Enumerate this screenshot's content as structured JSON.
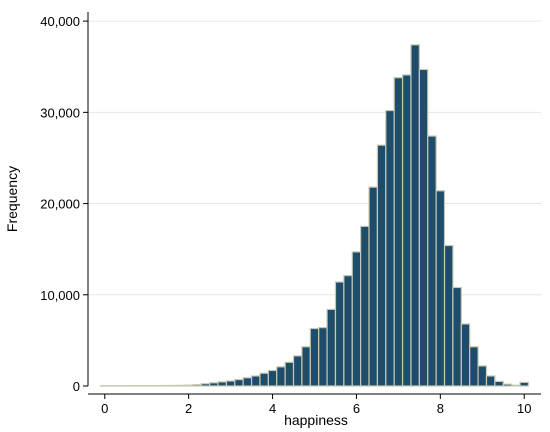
{
  "chart_data": {
    "type": "bar",
    "xlabel": "happiness",
    "ylabel": "Frequency",
    "xlim": [
      -0.4,
      10.4
    ],
    "ylim": [
      0,
      41000
    ],
    "x_ticks": [
      0,
      2,
      4,
      6,
      8,
      10
    ],
    "x_tick_labels": [
      "0",
      "2",
      "4",
      "6",
      "8",
      "10"
    ],
    "y_ticks": [
      0,
      10000,
      20000,
      30000,
      40000
    ],
    "y_tick_labels": [
      "0",
      "10,000",
      "20,000",
      "30,000",
      "40,000"
    ],
    "grid": "horizontal",
    "bin_width": 0.2,
    "bins": [
      {
        "x": 0.0,
        "y": 30
      },
      {
        "x": 0.2,
        "y": 30
      },
      {
        "x": 0.4,
        "y": 30
      },
      {
        "x": 0.6,
        "y": 30
      },
      {
        "x": 0.8,
        "y": 40
      },
      {
        "x": 1.0,
        "y": 40
      },
      {
        "x": 1.2,
        "y": 40
      },
      {
        "x": 1.4,
        "y": 50
      },
      {
        "x": 1.6,
        "y": 60
      },
      {
        "x": 1.8,
        "y": 70
      },
      {
        "x": 2.0,
        "y": 100
      },
      {
        "x": 2.2,
        "y": 150
      },
      {
        "x": 2.4,
        "y": 250
      },
      {
        "x": 2.6,
        "y": 350
      },
      {
        "x": 2.8,
        "y": 450
      },
      {
        "x": 3.0,
        "y": 550
      },
      {
        "x": 3.2,
        "y": 700
      },
      {
        "x": 3.4,
        "y": 900
      },
      {
        "x": 3.6,
        "y": 1100
      },
      {
        "x": 3.8,
        "y": 1400
      },
      {
        "x": 4.0,
        "y": 1700
      },
      {
        "x": 4.2,
        "y": 2100
      },
      {
        "x": 4.4,
        "y": 2600
      },
      {
        "x": 4.6,
        "y": 3300
      },
      {
        "x": 4.8,
        "y": 4300
      },
      {
        "x": 5.0,
        "y": 6300
      },
      {
        "x": 5.2,
        "y": 6400
      },
      {
        "x": 5.4,
        "y": 8400
      },
      {
        "x": 5.6,
        "y": 11400
      },
      {
        "x": 5.8,
        "y": 12100
      },
      {
        "x": 6.0,
        "y": 14700
      },
      {
        "x": 6.2,
        "y": 17500
      },
      {
        "x": 6.4,
        "y": 21800
      },
      {
        "x": 6.6,
        "y": 26400
      },
      {
        "x": 6.8,
        "y": 30200
      },
      {
        "x": 7.0,
        "y": 33800
      },
      {
        "x": 7.2,
        "y": 34100
      },
      {
        "x": 7.4,
        "y": 37400
      },
      {
        "x": 7.6,
        "y": 34700
      },
      {
        "x": 7.8,
        "y": 27400
      },
      {
        "x": 8.0,
        "y": 21400
      },
      {
        "x": 8.2,
        "y": 15400
      },
      {
        "x": 8.4,
        "y": 10800
      },
      {
        "x": 8.6,
        "y": 6800
      },
      {
        "x": 8.8,
        "y": 4300
      },
      {
        "x": 9.0,
        "y": 2200
      },
      {
        "x": 9.2,
        "y": 1100
      },
      {
        "x": 9.4,
        "y": 500
      },
      {
        "x": 9.6,
        "y": 200
      },
      {
        "x": 9.8,
        "y": 80
      },
      {
        "x": 10.0,
        "y": 400
      }
    ],
    "colors": {
      "bar_fill": "#1e4d6b",
      "bar_stroke": "#c8c8b4",
      "grid": "#e6e6e6",
      "axis": "#000000"
    }
  }
}
